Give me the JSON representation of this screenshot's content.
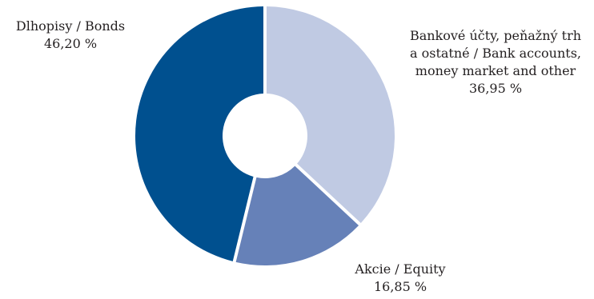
{
  "chart_data": {
    "type": "pie",
    "title": "",
    "donut": true,
    "slices": [
      {
        "name": "Bankové účty, peňažný trh a ostatné / Bank accounts, money market and other",
        "label_lines": [
          "Bankové účty, peňažný trh",
          "a ostatné / Bank accounts,",
          "money market and other"
        ],
        "value": 36.95,
        "value_label": "36,95 %",
        "color": "#c0cae3"
      },
      {
        "name": "Akcie / Equity",
        "label_lines": [
          "Akcie / Equity"
        ],
        "value": 16.85,
        "value_label": "16,85 %",
        "color": "#6681b8"
      },
      {
        "name": "Dlhopisy / Bonds",
        "label_lines": [
          "Dlhopisy / Bonds"
        ],
        "value": 46.2,
        "value_label": "46,20 %",
        "color": "#00508f"
      }
    ],
    "start_angle": "12 o'clock",
    "direction": "clockwise"
  }
}
